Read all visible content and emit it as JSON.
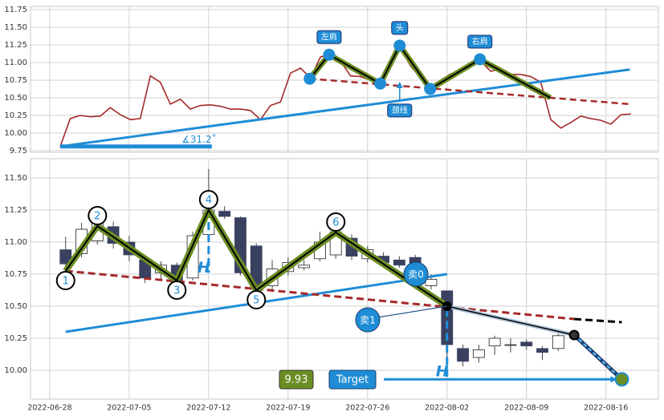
{
  "chart_data": [
    {
      "type": "line",
      "xlim": [
        -1.21,
        38.3
      ],
      "ylim": [
        9.727,
        11.795
      ],
      "yticks": [
        9.75,
        {
          "value": 10,
          "label": "10.00"
        },
        10.25,
        {
          "value": 10.5,
          "label": "10.50"
        },
        10.75,
        {
          "value": 11,
          "label": "11.00"
        },
        11.25,
        {
          "value": 11.5,
          "label": "11.50"
        },
        11.75
      ],
      "grid": true,
      "series": [
        {
          "color": "#a52a2a",
          "x": [
            0.66,
            1.29,
            1.92,
            2.55,
            3.18,
            3.81,
            4.44,
            5.07,
            5.7,
            6.33,
            6.96,
            7.59,
            8.22,
            8.85,
            9.48,
            10.11,
            10.74,
            11.37,
            12,
            12.63,
            13.26,
            13.89,
            14.52,
            15.15,
            15.78,
            16.41,
            17.04,
            17.67,
            18.3,
            18.93,
            19.56,
            20.19,
            20.82,
            21.45,
            22.08,
            22.71,
            23.34,
            23.97,
            24.6,
            25.23,
            25.86,
            26.49,
            27.12,
            27.75,
            28.38,
            29.01,
            29.64,
            30.27,
            30.9,
            31.53,
            32.16,
            32.79,
            33.42,
            34.05,
            34.68,
            35.31,
            35.94,
            36.57
          ],
          "values": [
            9.81,
            10.205,
            10.25,
            10.23,
            10.24,
            10.36,
            10.26,
            10.19,
            10.205,
            10.81,
            10.72,
            10.41,
            10.48,
            10.34,
            10.39,
            10.4,
            10.38,
            10.34,
            10.34,
            10.32,
            10.19,
            10.39,
            10.44,
            10.85,
            10.92,
            10.78,
            11.08,
            11.11,
            11.02,
            10.81,
            10.8,
            10.75,
            10.7,
            11.0,
            11.2,
            10.95,
            10.78,
            10.64,
            10.75,
            10.84,
            10.89,
            10.95,
            11.02,
            10.875,
            10.91,
            10.83,
            10.83,
            10.8,
            10.72,
            10.19,
            10.07,
            10.15,
            10.24,
            10.205,
            10.18,
            10.125,
            10.26,
            10.27
          ]
        }
      ],
      "trend": {
        "color": "#1f8dd6",
        "x": [
          0.66,
          36.5
        ],
        "values": [
          9.81,
          10.9
        ]
      },
      "angle": {
        "color": "#1f8dd6",
        "x": [
          0.66,
          10.2
        ],
        "values": [
          9.81,
          9.81
        ],
        "label": "∡31.2˚"
      },
      "neckline": {
        "color": "#a52a2a",
        "x": [
          16.36,
          36.5
        ],
        "values": [
          10.77,
          10.41
        ]
      },
      "pattern": {
        "x": [
          16.36,
          17.58,
          20.8,
          22.02,
          23.94,
          27.07,
          31.5
        ],
        "values": [
          10.77,
          11.11,
          10.7,
          11.24,
          10.625,
          11.045,
          10.5
        ]
      },
      "labels": [
        "左肩",
        "头",
        "右肩"
      ],
      "neckline_label": "颈线"
    },
    {
      "type": "candlestick",
      "xlim": [
        -1.21,
        38.3
      ],
      "ylim": [
        9.775,
        11.65
      ],
      "xticks": [
        {
          "value": 0,
          "label": "2022-06-28"
        },
        {
          "value": 5,
          "label": "2022-07-05"
        },
        {
          "value": 10,
          "label": "2022-07-12"
        },
        {
          "value": 15,
          "label": "2022-07-19"
        },
        {
          "value": 20,
          "label": "2022-07-26"
        },
        {
          "value": 25,
          "label": "2022-08-02"
        },
        {
          "value": 30,
          "label": "2022-08-09"
        },
        {
          "value": 35,
          "label": "2022-08-16"
        }
      ],
      "yticks": [
        {
          "value": 10,
          "label": "10.00"
        },
        10.25,
        {
          "value": 10.5,
          "label": "10.50"
        },
        10.75,
        {
          "value": 11,
          "label": "11.00"
        },
        11.25,
        {
          "value": 11.5,
          "label": "11.50"
        }
      ],
      "grid": true,
      "up_color": "#ffffff",
      "down_color": "#3a4160",
      "x": [
        1,
        2,
        3,
        4,
        5,
        6,
        7,
        8,
        9,
        10,
        11,
        12,
        13,
        14,
        15,
        16,
        17,
        18,
        19,
        20,
        21,
        22,
        23,
        24,
        25,
        26,
        27,
        28,
        29,
        30,
        31,
        32
      ],
      "open": [
        10.94,
        10.91,
        11.01,
        11.12,
        11.0,
        10.86,
        10.76,
        10.82,
        10.72,
        11.06,
        11.24,
        11.19,
        10.97,
        10.66,
        10.77,
        10.8,
        10.87,
        10.9,
        11.03,
        10.87,
        10.89,
        10.86,
        10.88,
        10.66,
        10.62,
        10.17,
        10.1,
        10.19,
        10.2,
        10.22,
        10.17,
        10.17
      ],
      "high": [
        11.04,
        11.15,
        11.2,
        11.16,
        11.05,
        10.9,
        10.85,
        10.84,
        11.08,
        11.57,
        11.28,
        11.2,
        10.99,
        10.86,
        10.88,
        10.86,
        11.08,
        11.12,
        11.06,
        10.97,
        10.92,
        10.89,
        10.9,
        10.75,
        10.62,
        10.2,
        10.2,
        10.27,
        10.25,
        10.24,
        10.19,
        10.29
      ],
      "low": [
        10.78,
        10.88,
        10.98,
        10.95,
        10.85,
        10.68,
        10.7,
        10.68,
        10.7,
        11.03,
        11.18,
        10.74,
        10.62,
        10.62,
        10.74,
        10.78,
        10.85,
        10.87,
        10.86,
        10.84,
        10.81,
        10.8,
        10.8,
        10.63,
        10.0,
        10.03,
        10.06,
        10.12,
        10.14,
        10.16,
        10.08,
        10.15
      ],
      "close": [
        10.83,
        11.1,
        11.16,
        10.99,
        10.9,
        10.72,
        10.82,
        10.7,
        11.05,
        11.25,
        11.2,
        10.76,
        10.66,
        10.79,
        10.84,
        10.82,
        11.0,
        11.08,
        10.89,
        10.94,
        10.84,
        10.82,
        10.83,
        10.71,
        10.2,
        10.07,
        10.16,
        10.25,
        10.2,
        10.19,
        10.14,
        10.27
      ],
      "pattern": {
        "x": [
          1,
          3,
          8,
          10,
          13,
          18,
          25
        ],
        "values": [
          10.775,
          11.125,
          10.7,
          11.25,
          10.625,
          11.075,
          10.5
        ],
        "labels": [
          "1",
          "2",
          "3",
          "4",
          "5",
          "6"
        ]
      },
      "neckline": {
        "color": "#a52a2a",
        "x": [
          1,
          33
        ],
        "values": [
          10.775,
          10.4
        ]
      },
      "neckline_ext": {
        "color": "#000000",
        "x": [
          33,
          36
        ],
        "values": [
          10.4,
          10.375
        ]
      },
      "trend": {
        "color": "#1f8dd6",
        "x": [
          1,
          25
        ],
        "values": [
          10.3,
          10.75
        ]
      },
      "forecast": {
        "x": [
          25,
          33,
          36
        ],
        "values": [
          10.5,
          10.275,
          9.93
        ]
      },
      "heights": [
        {
          "x": [
            10,
            10
          ],
          "values": [
            11.25,
            10.76
          ]
        },
        {
          "x": [
            25,
            25
          ],
          "values": [
            10.48,
            9.95
          ]
        }
      ],
      "height_label": "H",
      "signals": [
        "卖0",
        "卖1"
      ],
      "target": 9.93,
      "target_label": "Target"
    }
  ]
}
